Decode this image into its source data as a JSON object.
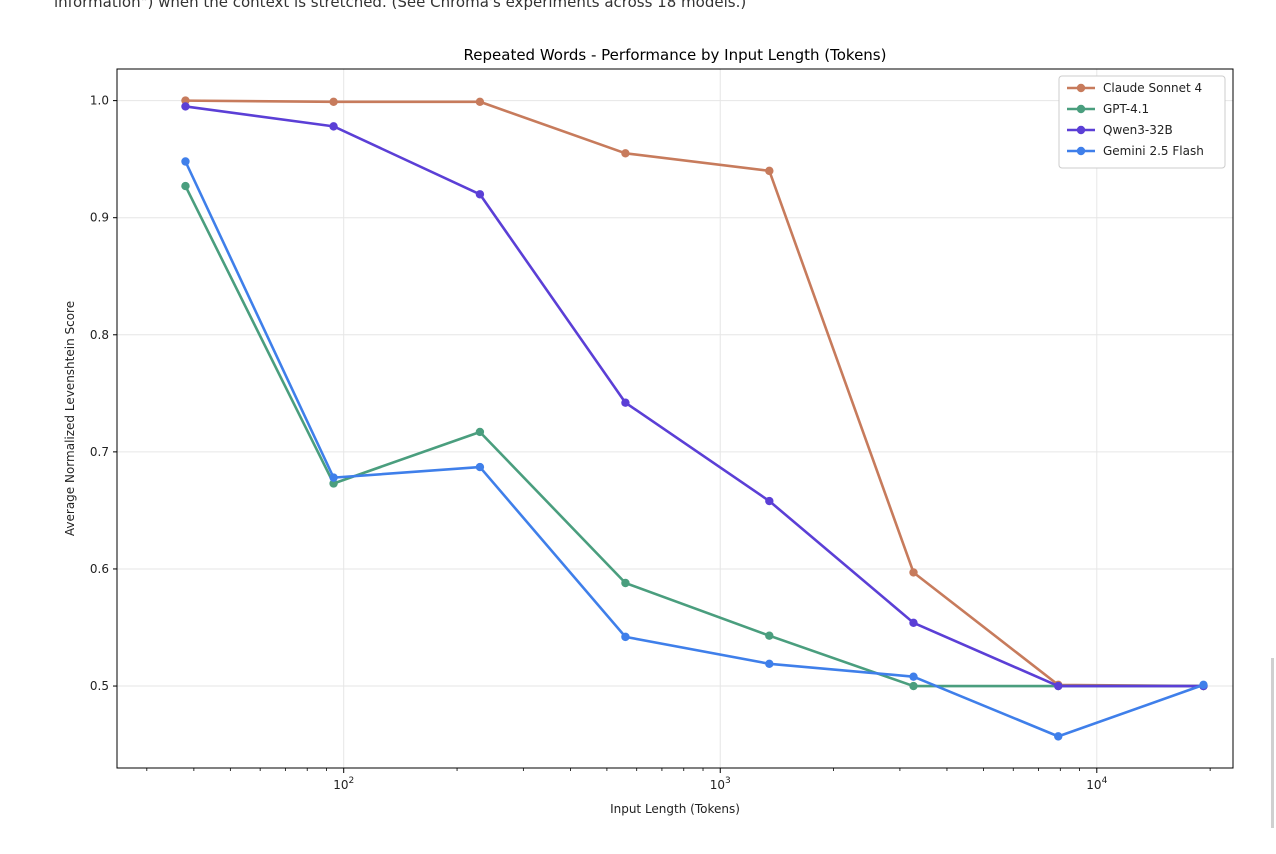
{
  "caption": "information\") when the context is stretched. (See Chroma's experiments across 18 models.)",
  "colors": {
    "claude": "#c77b5c",
    "gpt": "#4a9e7e",
    "qwen": "#5b3fd6",
    "gemini": "#3f7fea"
  },
  "chart_data": {
    "type": "line",
    "title": "Repeated Words - Performance by Input Length (Tokens)",
    "xlabel": "Input Length (Tokens)",
    "ylabel": "Average Normalized Levenshtein Score",
    "xscale": "log",
    "xlim": [
      25,
      23000
    ],
    "ylim": [
      0.43,
      1.027
    ],
    "yticks": [
      0.5,
      0.6,
      0.7,
      0.8,
      0.9,
      1.0
    ],
    "ytick_labels": [
      "0.5",
      "0.6",
      "0.7",
      "0.8",
      "0.9",
      "1.0"
    ],
    "xticks_major": [
      100,
      1000,
      10000
    ],
    "xtick_labels": [
      {
        "base": "10",
        "exp": "2"
      },
      {
        "base": "10",
        "exp": "3"
      },
      {
        "base": "10",
        "exp": "4"
      }
    ],
    "grid": true,
    "legend_position": "top-right",
    "x": [
      38,
      94,
      230,
      560,
      1350,
      3260,
      7900,
      19200
    ],
    "series": [
      {
        "name": "Claude Sonnet 4",
        "color_key": "claude",
        "values": [
          1.0,
          0.999,
          0.999,
          0.955,
          0.94,
          0.597,
          0.501,
          0.5
        ]
      },
      {
        "name": "GPT-4.1",
        "color_key": "gpt",
        "values": [
          0.927,
          0.673,
          0.717,
          0.588,
          0.543,
          0.5,
          0.5,
          0.5
        ]
      },
      {
        "name": "Qwen3-32B",
        "color_key": "qwen",
        "values": [
          0.995,
          0.978,
          0.92,
          0.742,
          0.658,
          0.554,
          0.5,
          0.5
        ]
      },
      {
        "name": "Gemini 2.5 Flash",
        "color_key": "gemini",
        "values": [
          0.948,
          0.678,
          0.687,
          0.542,
          0.519,
          0.508,
          0.457,
          0.501
        ]
      }
    ]
  }
}
